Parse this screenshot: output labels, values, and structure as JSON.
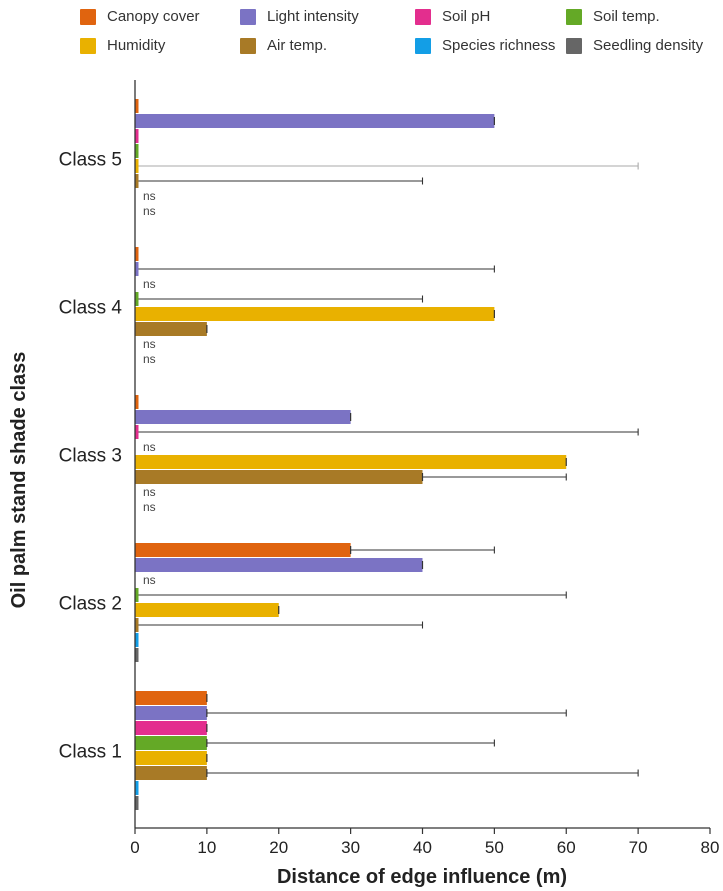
{
  "legend": [
    {
      "name": "Canopy cover",
      "color": "#e0640f"
    },
    {
      "name": "Light intensity",
      "color": "#7b73c4"
    },
    {
      "name": "Soil pH",
      "color": "#e32e8e"
    },
    {
      "name": "Soil temp.",
      "color": "#64a926"
    },
    {
      "name": "Humidity",
      "color": "#e9b100"
    },
    {
      "name": "Air temp.",
      "color": "#a87a26"
    },
    {
      "name": "Species richness",
      "color": "#139ee6"
    },
    {
      "name": "Seedling density",
      "color": "#666666"
    }
  ],
  "chart_data": {
    "type": "bar",
    "orientation": "horizontal",
    "xlabel": "Distance of edge influence (m)",
    "ylabel": "Oil palm stand shade class",
    "xlim": [
      0,
      80
    ],
    "xticks": [
      0,
      10,
      20,
      30,
      40,
      50,
      60,
      70,
      80
    ],
    "categories": [
      "Class 5",
      "Class 4",
      "Class 3",
      "Class 2",
      "Class 1"
    ],
    "annotation_text": "ns",
    "groups": [
      {
        "category": "Class 5",
        "bars": [
          {
            "series": "Canopy cover",
            "value": 0
          },
          {
            "series": "Light intensity",
            "value": 50
          },
          {
            "series": "Soil pH",
            "value": 0
          },
          {
            "series": "Soil temp.",
            "value": 0
          },
          {
            "series": "Humidity",
            "value": 0,
            "error_upper": 70
          },
          {
            "series": "Air temp.",
            "value": 0,
            "error_upper": 40
          },
          {
            "series": "Species richness",
            "value": null,
            "label": "ns"
          },
          {
            "series": "Seedling density",
            "value": null,
            "label": "ns"
          }
        ]
      },
      {
        "category": "Class 4",
        "bars": [
          {
            "series": "Canopy cover",
            "value": 0
          },
          {
            "series": "Light intensity",
            "value": 0,
            "error_upper": 50
          },
          {
            "series": "Soil pH",
            "value": null,
            "label": "ns"
          },
          {
            "series": "Soil temp.",
            "value": 0,
            "error_upper": 40
          },
          {
            "series": "Humidity",
            "value": 50
          },
          {
            "series": "Air temp.",
            "value": 10
          },
          {
            "series": "Species richness",
            "value": null,
            "label": "ns"
          },
          {
            "series": "Seedling density",
            "value": null,
            "label": "ns"
          }
        ]
      },
      {
        "category": "Class 3",
        "bars": [
          {
            "series": "Canopy cover",
            "value": 0
          },
          {
            "series": "Light intensity",
            "value": 30
          },
          {
            "series": "Soil pH",
            "value": 0,
            "error_upper": 70
          },
          {
            "series": "Soil temp.",
            "value": null,
            "label": "ns"
          },
          {
            "series": "Humidity",
            "value": 60
          },
          {
            "series": "Air temp.",
            "value": 40,
            "error_upper": 60
          },
          {
            "series": "Species richness",
            "value": null,
            "label": "ns"
          },
          {
            "series": "Seedling density",
            "value": null,
            "label": "ns"
          }
        ]
      },
      {
        "category": "Class 2",
        "bars": [
          {
            "series": "Canopy cover",
            "value": 30,
            "error_upper": 50
          },
          {
            "series": "Light intensity",
            "value": 40
          },
          {
            "series": "Soil pH",
            "value": null,
            "label": "ns"
          },
          {
            "series": "Soil temp.",
            "value": 0,
            "error_upper": 60
          },
          {
            "series": "Humidity",
            "value": 20
          },
          {
            "series": "Air temp.",
            "value": 0,
            "error_upper": 40
          },
          {
            "series": "Species richness",
            "value": 0
          },
          {
            "series": "Seedling density",
            "value": 0
          }
        ]
      },
      {
        "category": "Class 1",
        "bars": [
          {
            "series": "Canopy cover",
            "value": 10
          },
          {
            "series": "Light intensity",
            "value": 10,
            "error_upper": 60
          },
          {
            "series": "Soil pH",
            "value": 10
          },
          {
            "series": "Soil temp.",
            "value": 10,
            "error_upper": 50
          },
          {
            "series": "Humidity",
            "value": 10
          },
          {
            "series": "Air temp.",
            "value": 10,
            "error_upper": 70
          },
          {
            "series": "Species richness",
            "value": 0
          },
          {
            "series": "Seedling density",
            "value": 0
          }
        ]
      }
    ]
  }
}
